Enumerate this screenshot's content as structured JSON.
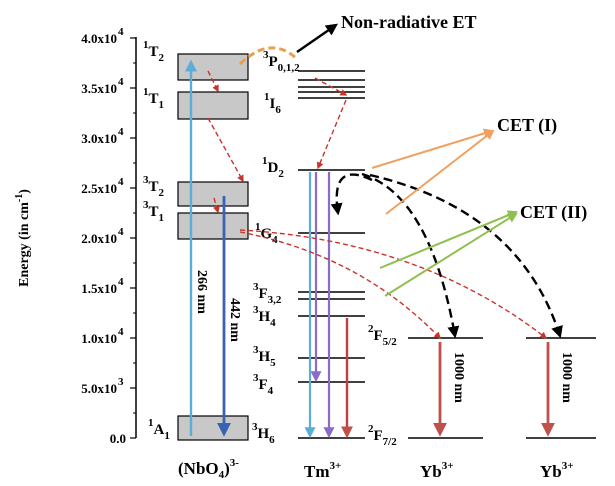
{
  "axis": {
    "ylabel": "Energy (in cm",
    "ylabel_sup": "-1",
    "ylabel_end": ")",
    "ticks": [
      {
        "label": "0.0",
        "value": 0
      },
      {
        "label": "5.0x10",
        "exp": "3",
        "value": 5000
      },
      {
        "label": "1.0x10",
        "exp": "4",
        "value": 10000
      },
      {
        "label": "1.5x10",
        "exp": "4",
        "value": 15000
      },
      {
        "label": "2.0x10",
        "exp": "4",
        "value": 20000
      },
      {
        "label": "2.5x10",
        "exp": "4",
        "value": 25000
      },
      {
        "label": "3.0x10",
        "exp": "4",
        "value": 30000
      },
      {
        "label": "3.5x10",
        "exp": "4",
        "value": 35000
      },
      {
        "label": "4.0x10",
        "exp": "4",
        "value": 40000
      }
    ]
  },
  "columns": {
    "nbo4": {
      "label": "(NbO",
      "sub": "4",
      "end": ")",
      "sup": "3-"
    },
    "tm": {
      "label": "Tm",
      "sup": "3+"
    },
    "yb1": {
      "label": "Yb",
      "sup": "3+"
    },
    "yb2": {
      "label": "Yb",
      "sup": "3+"
    }
  },
  "levels": {
    "nbo4": [
      {
        "pre": "1",
        "main": "T",
        "sub": "2"
      },
      {
        "pre": "1",
        "main": "T",
        "sub": "1"
      },
      {
        "pre": "3",
        "main": "T",
        "sub": "2"
      },
      {
        "pre": "3",
        "main": "T",
        "sub": "1"
      },
      {
        "pre": "1",
        "main": "A",
        "sub": "1"
      }
    ],
    "tm": [
      {
        "pre": "3",
        "main": "P",
        "sub": "0,1,2"
      },
      {
        "pre": "1",
        "main": "I",
        "sub": "6"
      },
      {
        "pre": "1",
        "main": "D",
        "sub": "2"
      },
      {
        "pre": "1",
        "main": "G",
        "sub": "4"
      },
      {
        "pre": "3",
        "main": "F",
        "sub": "3,2"
      },
      {
        "pre": "3",
        "main": "H",
        "sub": "4"
      },
      {
        "pre": "3",
        "main": "H",
        "sub": "5"
      },
      {
        "pre": "3",
        "main": "F",
        "sub": "4"
      },
      {
        "pre": "3",
        "main": "H",
        "sub": "6"
      }
    ],
    "yb": [
      {
        "pre": "2",
        "main": "F",
        "sub": "5/2"
      },
      {
        "pre": "2",
        "main": "F",
        "sub": "7/2"
      }
    ]
  },
  "transitions": {
    "excitation": "266 nm",
    "emission": "442 nm",
    "yb_emission_1": "1000 nm",
    "yb_emission_2": "1000 nm"
  },
  "annotations": {
    "non_radiative": "Non-radiative ET",
    "cet1": "CET (I)",
    "cet2": "CET (II)"
  },
  "colors": {
    "box_fill": "#c8c8c8",
    "excitation": "#5aaed8",
    "emission": "#3a62b4",
    "relaxation": "#c8342c",
    "orange_transfer": "#e8a050",
    "cet1": "#f0a060",
    "cet2": "#8ec050",
    "tm_purple": "#8a6cc8",
    "tm_red": "#c04040",
    "yb_red": "#c0504a"
  }
}
